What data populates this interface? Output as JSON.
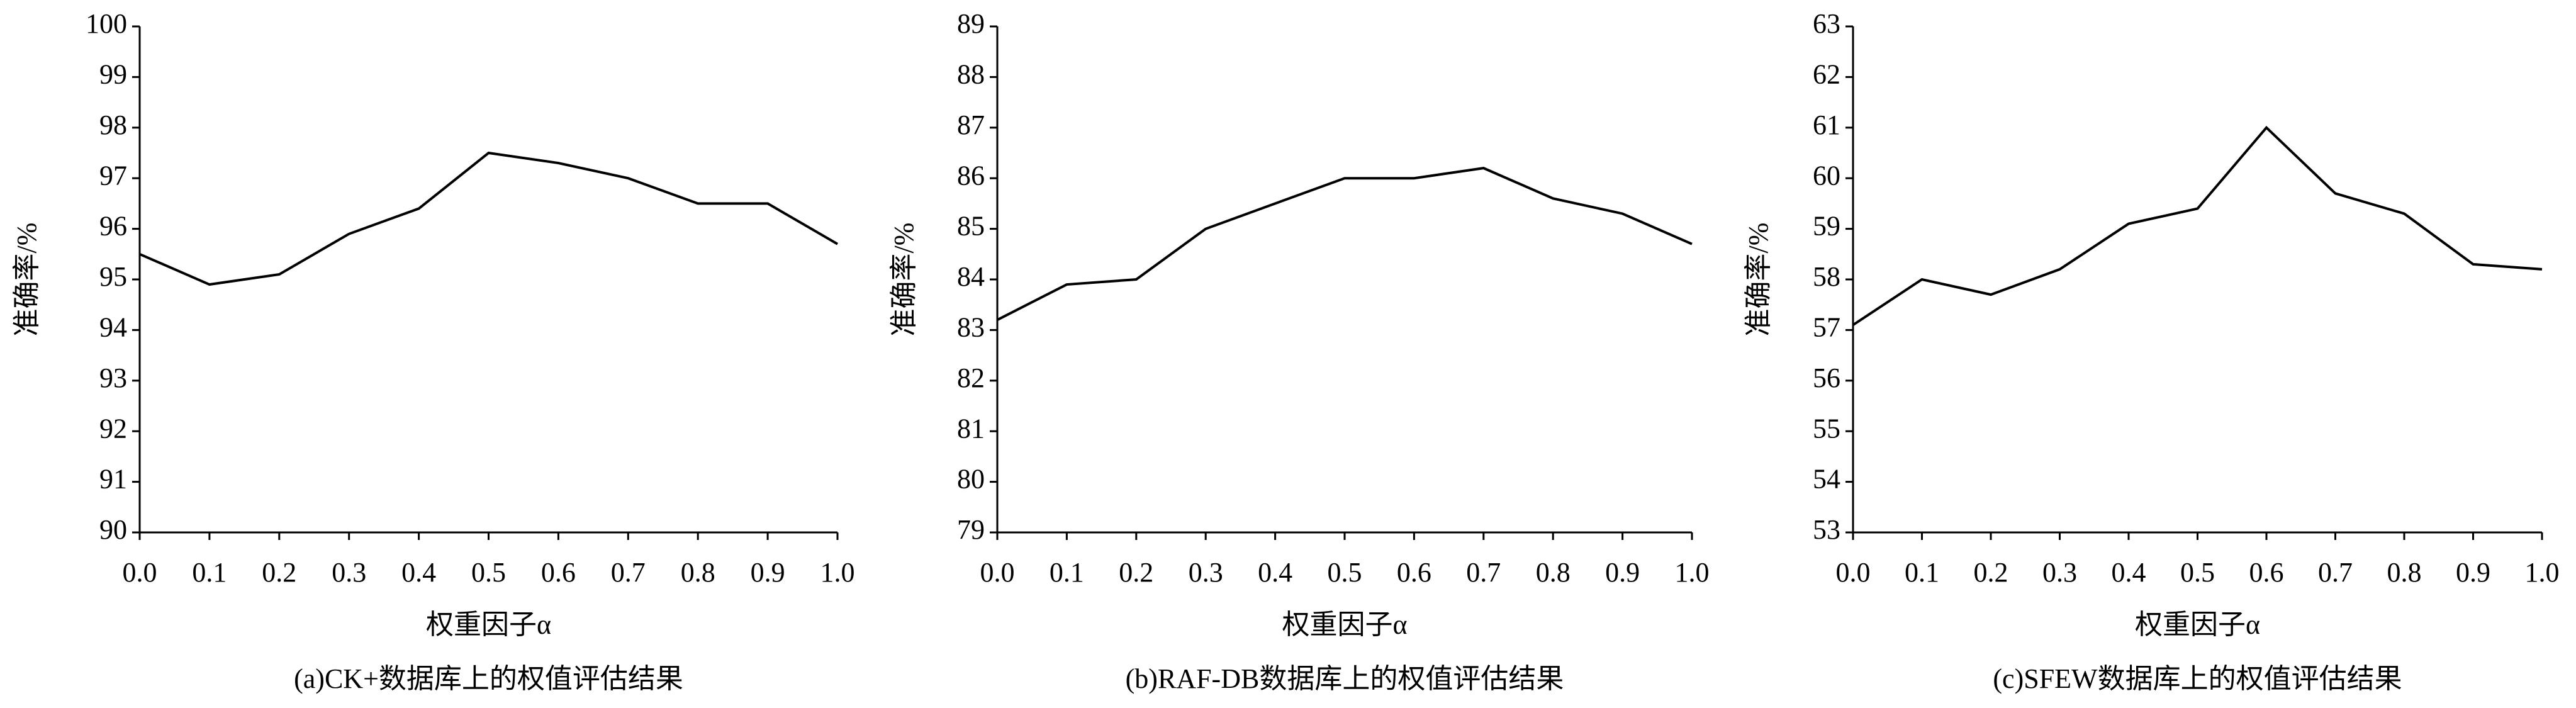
{
  "chart_data": [
    {
      "type": "line",
      "caption": "(a)CK+数据库上的权值评估结果",
      "x_label": "权重因子α",
      "y_label": "准确率/%",
      "x": [
        0,
        0.1,
        0.2,
        0.3,
        0.4,
        0.5,
        0.6,
        0.7,
        0.8,
        0.9,
        1
      ],
      "series": [
        {
          "color": "#000000",
          "values": [
            95.5,
            94.9,
            95.1,
            95.9,
            96.4,
            97.5,
            97.3,
            97.0,
            96.5,
            96.5,
            95.7
          ]
        }
      ],
      "xlim": [
        0,
        1
      ],
      "xticks": [
        {
          "value": 0,
          "label": "0.0"
        },
        0.1,
        0.2,
        0.3,
        0.4,
        0.5,
        0.6,
        0.7,
        0.8,
        0.9,
        {
          "value": 1,
          "label": "1.0"
        }
      ],
      "ylim": [
        90,
        100
      ],
      "yticks": [
        90,
        91,
        92,
        93,
        94,
        95,
        96,
        97,
        98,
        99,
        100
      ]
    },
    {
      "type": "line",
      "caption": "(b)RAF-DB数据库上的权值评估结果",
      "x_label": "权重因子α",
      "y_label": "准确率/%",
      "x": [
        0,
        0.1,
        0.2,
        0.3,
        0.4,
        0.5,
        0.6,
        0.7,
        0.8,
        0.9,
        1
      ],
      "series": [
        {
          "color": "#000000",
          "values": [
            83.2,
            83.9,
            84.0,
            85.0,
            85.5,
            86.0,
            86.0,
            86.2,
            85.6,
            85.3,
            84.7
          ]
        }
      ],
      "xlim": [
        0,
        1
      ],
      "xticks": [
        {
          "value": 0,
          "label": "0.0"
        },
        0.1,
        0.2,
        0.3,
        0.4,
        0.5,
        0.6,
        0.7,
        0.8,
        0.9,
        {
          "value": 1,
          "label": "1.0"
        }
      ],
      "ylim": [
        79,
        89
      ],
      "yticks": [
        79,
        80,
        81,
        82,
        83,
        84,
        85,
        86,
        87,
        88,
        89
      ]
    },
    {
      "type": "line",
      "caption": "(c)SFEW数据库上的权值评估结果",
      "x_label": "权重因子α",
      "y_label": "准确率/%",
      "x": [
        0,
        0.1,
        0.2,
        0.3,
        0.4,
        0.5,
        0.6,
        0.7,
        0.8,
        0.9,
        1
      ],
      "series": [
        {
          "color": "#000000",
          "values": [
            57.1,
            58.0,
            57.7,
            58.2,
            59.1,
            59.4,
            61.0,
            59.7,
            59.3,
            58.3,
            58.2
          ]
        }
      ],
      "xlim": [
        0,
        1
      ],
      "xticks": [
        {
          "value": 0,
          "label": "0.0"
        },
        0.1,
        0.2,
        0.3,
        0.4,
        0.5,
        0.6,
        0.7,
        0.8,
        0.9,
        {
          "value": 1,
          "label": "1.0"
        }
      ],
      "ylim": [
        53,
        63
      ],
      "yticks": [
        53,
        54,
        55,
        56,
        57,
        58,
        59,
        60,
        61,
        62,
        63
      ]
    }
  ]
}
